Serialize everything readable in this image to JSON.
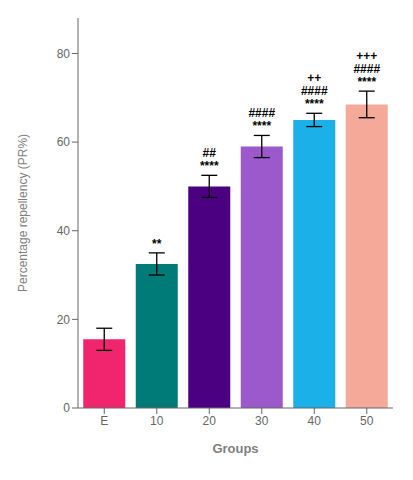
{
  "chart_data": {
    "type": "bar",
    "xlabel": "Groups",
    "ylabel": "Percentage repellency (PR%)",
    "categories": [
      "E",
      "10",
      "20",
      "30",
      "40",
      "50"
    ],
    "values": [
      15.5,
      32.5,
      50.0,
      59.0,
      65.0,
      68.5
    ],
    "errors": [
      2.5,
      2.5,
      2.5,
      2.5,
      1.5,
      3.0
    ],
    "colors": [
      "#F0256E",
      "#007B78",
      "#4B0082",
      "#9B59CC",
      "#1BB0E8",
      "#F4A999"
    ],
    "ylim": [
      0,
      88
    ],
    "yticks": [
      0,
      20,
      40,
      60,
      80
    ],
    "grid": false,
    "annotations": [
      {
        "category": "10",
        "text": "**"
      },
      {
        "category": "20",
        "text": "****"
      },
      {
        "category": "20",
        "text": "##"
      },
      {
        "category": "30",
        "text": "****"
      },
      {
        "category": "30",
        "text": "####"
      },
      {
        "category": "40",
        "text": "****"
      },
      {
        "category": "40",
        "text": "####"
      },
      {
        "category": "40",
        "text": "++"
      },
      {
        "category": "50",
        "text": "****"
      },
      {
        "category": "50",
        "text": "####"
      },
      {
        "category": "50",
        "text": "+++"
      }
    ]
  }
}
